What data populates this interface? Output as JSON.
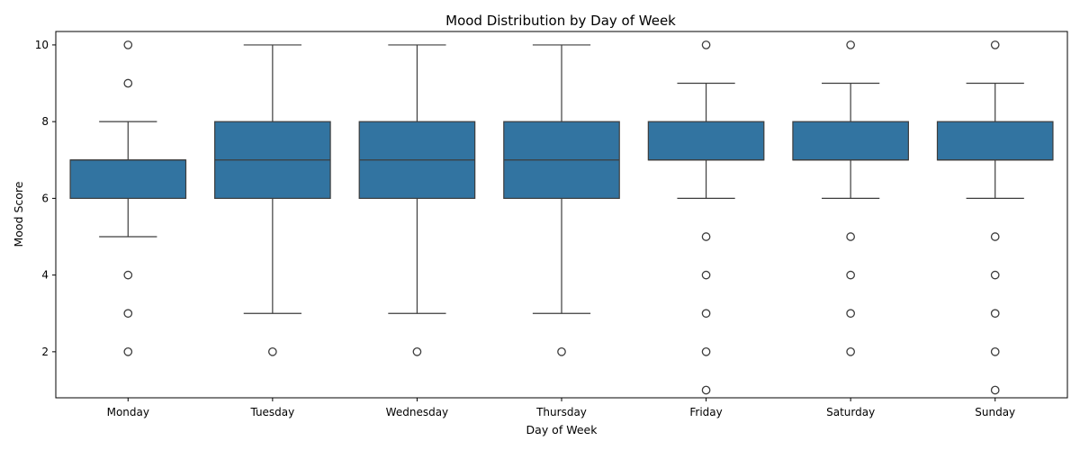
{
  "chart_data": {
    "type": "box",
    "title": "Mood Distribution by Day of Week",
    "xlabel": "Day of Week",
    "ylabel": "Mood Score",
    "ylim": [
      0.8,
      10.35
    ],
    "yticks": [
      2,
      4,
      6,
      8,
      10
    ],
    "grid": false,
    "box_color": "#3274a1",
    "line_color": "#3d3d3d",
    "categories": [
      "Monday",
      "Tuesday",
      "Wednesday",
      "Thursday",
      "Friday",
      "Saturday",
      "Sunday"
    ],
    "boxes": [
      {
        "whisker_low": 5,
        "q1": 6,
        "median": 7,
        "q3": 7,
        "whisker_high": 8,
        "outliers": [
          2,
          3,
          4,
          9,
          10
        ]
      },
      {
        "whisker_low": 3,
        "q1": 6,
        "median": 7,
        "q3": 8,
        "whisker_high": 10,
        "outliers": [
          2
        ]
      },
      {
        "whisker_low": 3,
        "q1": 6,
        "median": 7,
        "q3": 8,
        "whisker_high": 10,
        "outliers": [
          2
        ]
      },
      {
        "whisker_low": 3,
        "q1": 6,
        "median": 7,
        "q3": 8,
        "whisker_high": 10,
        "outliers": [
          2
        ]
      },
      {
        "whisker_low": 6,
        "q1": 7,
        "median": 7,
        "q3": 8,
        "whisker_high": 9,
        "outliers": [
          1,
          2,
          3,
          4,
          5,
          10
        ]
      },
      {
        "whisker_low": 6,
        "q1": 7,
        "median": 7,
        "q3": 8,
        "whisker_high": 9,
        "outliers": [
          2,
          3,
          4,
          5,
          10
        ]
      },
      {
        "whisker_low": 6,
        "q1": 7,
        "median": 7,
        "q3": 8,
        "whisker_high": 9,
        "outliers": [
          1,
          2,
          3,
          4,
          5,
          10
        ]
      }
    ]
  }
}
